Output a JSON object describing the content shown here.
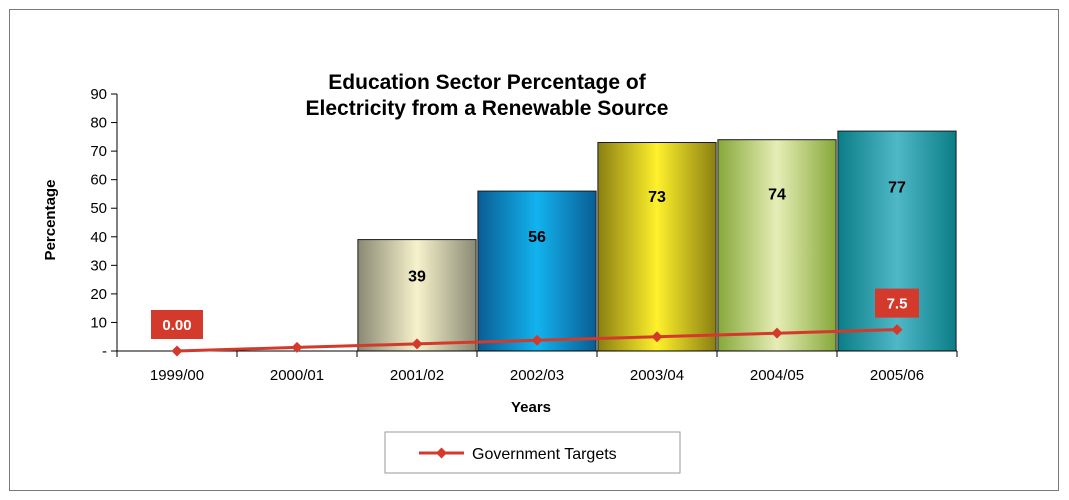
{
  "chart_data": {
    "type": "bar",
    "title_line1": "Education Sector Percentage of",
    "title_line2": "Electricity from a Renewable Source",
    "xlabel": "Years",
    "ylabel": "Percentage",
    "categories": [
      "1999/00",
      "2000/01",
      "2001/02",
      "2002/03",
      "2003/04",
      "2004/05",
      "2005/06"
    ],
    "ylim": [
      0,
      90
    ],
    "yticks": [
      0,
      10,
      20,
      30,
      40,
      50,
      60,
      70,
      80,
      90
    ],
    "ytick_labels": [
      "-",
      "10",
      "20",
      "30",
      "40",
      "50",
      "60",
      "70",
      "80",
      "90"
    ],
    "grid": false,
    "series": [
      {
        "kind": "bar",
        "values": [
          null,
          null,
          39,
          56,
          73,
          74,
          77
        ],
        "labels": [
          "",
          "",
          "39",
          "56",
          "73",
          "74",
          "77"
        ],
        "gradients": [
          null,
          null,
          [
            "#8a8a74",
            "#f7f2cc",
            "#8a8a74"
          ],
          [
            "#0a5d93",
            "#12b3ef",
            "#0a5d93"
          ],
          [
            "#8a7f12",
            "#fff12b",
            "#8a7f12"
          ],
          [
            "#86a83a",
            "#e6edb6",
            "#86a83a"
          ],
          [
            "#0b7d86",
            "#4fb8c7",
            "#0b7d86"
          ]
        ]
      },
      {
        "kind": "line",
        "name": "Government Targets",
        "color": "#d33a2c",
        "values": [
          0,
          1.25,
          2.5,
          3.75,
          5,
          6.25,
          7.5
        ],
        "point_labels": [
          "0.00",
          "",
          "",
          "",
          "",
          "",
          "7.5"
        ]
      }
    ],
    "legend": {
      "placement": "bottom-center",
      "entries": [
        "Government Targets"
      ]
    }
  }
}
